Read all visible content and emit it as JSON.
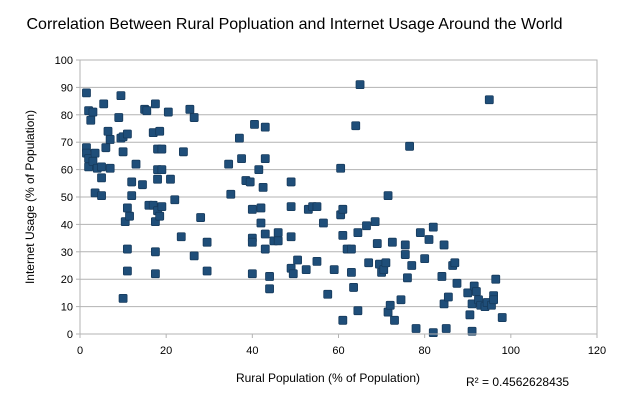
{
  "chart_data": {
    "type": "scatter",
    "title": "Correlation Between Rural Popluation and Internet Usage Around the World",
    "xlabel": "Rural Population (% of Population)",
    "ylabel": "Internet Usage (% of Population)",
    "xlim": [
      0,
      120
    ],
    "ylim": [
      0,
      100
    ],
    "xticks": [
      0,
      20,
      40,
      60,
      80,
      100,
      120
    ],
    "yticks": [
      0,
      10,
      20,
      30,
      40,
      50,
      60,
      70,
      80,
      90,
      100
    ],
    "grid": "horizontal",
    "annotation": "R² = 0.4562628435",
    "marker_color": "#1f4e79",
    "points": [
      [
        1.5,
        88
      ],
      [
        1.5,
        68
      ],
      [
        2,
        81.5
      ],
      [
        2.5,
        78
      ],
      [
        3,
        81
      ],
      [
        1.5,
        66
      ],
      [
        2,
        64
      ],
      [
        2,
        61
      ],
      [
        3,
        63
      ],
      [
        3.5,
        66
      ],
      [
        4,
        60.5
      ],
      [
        3.5,
        51.5
      ],
      [
        5,
        61
      ],
      [
        5,
        57
      ],
      [
        5,
        50.5
      ],
      [
        5.5,
        84
      ],
      [
        6,
        68
      ],
      [
        6.5,
        74
      ],
      [
        7,
        71
      ],
      [
        7,
        60.5
      ],
      [
        9,
        79
      ],
      [
        9.5,
        87
      ],
      [
        9.5,
        71.5
      ],
      [
        10,
        66.5
      ],
      [
        10,
        72
      ],
      [
        11,
        73
      ],
      [
        10,
        13
      ],
      [
        10.5,
        41
      ],
      [
        11,
        46
      ],
      [
        11.5,
        43
      ],
      [
        11,
        31
      ],
      [
        11,
        23
      ],
      [
        12,
        55.5
      ],
      [
        12,
        50.5
      ],
      [
        13,
        62
      ],
      [
        14.5,
        54.5
      ],
      [
        15,
        82
      ],
      [
        15.5,
        81.5
      ],
      [
        16,
        47
      ],
      [
        17,
        73.5
      ],
      [
        17.5,
        84
      ],
      [
        18,
        67.5
      ],
      [
        18,
        60
      ],
      [
        18.5,
        74
      ],
      [
        18,
        56.5
      ],
      [
        17,
        47
      ],
      [
        17.5,
        41
      ],
      [
        18,
        45
      ],
      [
        18.5,
        43
      ],
      [
        19,
        46.5
      ],
      [
        17.5,
        30
      ],
      [
        17.5,
        22
      ],
      [
        19,
        60
      ],
      [
        19,
        67.5
      ],
      [
        20.5,
        81
      ],
      [
        21,
        56.5
      ],
      [
        22,
        49
      ],
      [
        24,
        66.5
      ],
      [
        23.5,
        35.5
      ],
      [
        25.5,
        82
      ],
      [
        26.5,
        79
      ],
      [
        26.5,
        28.5
      ],
      [
        28,
        42.5
      ],
      [
        29.5,
        33.5
      ],
      [
        29.5,
        23
      ],
      [
        34.5,
        62
      ],
      [
        35,
        51
      ],
      [
        37,
        71.5
      ],
      [
        37.5,
        64
      ],
      [
        38.5,
        56
      ],
      [
        39.5,
        55.5
      ],
      [
        40.5,
        76.5
      ],
      [
        40,
        45.5
      ],
      [
        40,
        35
      ],
      [
        40,
        33.5
      ],
      [
        40,
        22
      ],
      [
        41.5,
        60
      ],
      [
        42,
        46
      ],
      [
        42.5,
        53.5
      ],
      [
        42,
        40.5
      ],
      [
        43,
        75.5
      ],
      [
        43,
        64
      ],
      [
        43,
        36.5
      ],
      [
        43,
        31
      ],
      [
        44,
        21
      ],
      [
        44,
        16.5
      ],
      [
        45,
        34
      ],
      [
        46,
        37
      ],
      [
        46,
        34
      ],
      [
        49,
        55.5
      ],
      [
        49,
        46.5
      ],
      [
        49,
        35.5
      ],
      [
        49,
        24
      ],
      [
        49.5,
        22
      ],
      [
        50.5,
        27
      ],
      [
        52.5,
        23.5
      ],
      [
        53,
        45.5
      ],
      [
        54,
        46.5
      ],
      [
        55,
        46.5
      ],
      [
        55,
        26.5
      ],
      [
        56.5,
        40.5
      ],
      [
        57.5,
        14.5
      ],
      [
        59,
        23.5
      ],
      [
        60.5,
        60.5
      ],
      [
        60.5,
        43.5
      ],
      [
        61,
        45.5
      ],
      [
        61,
        36
      ],
      [
        61,
        5
      ],
      [
        62,
        31
      ],
      [
        63,
        31
      ],
      [
        63,
        22.5
      ],
      [
        63.5,
        17
      ],
      [
        64,
        76
      ],
      [
        64.5,
        8.5
      ],
      [
        64.5,
        37
      ],
      [
        65,
        91
      ],
      [
        66.5,
        39.5
      ],
      [
        67,
        26
      ],
      [
        68.5,
        41
      ],
      [
        69,
        33
      ],
      [
        69.5,
        25.5
      ],
      [
        70,
        22.5
      ],
      [
        70.5,
        23.5
      ],
      [
        71,
        26
      ],
      [
        71.5,
        50.5
      ],
      [
        71.5,
        8
      ],
      [
        72,
        10.5
      ],
      [
        72.5,
        33.5
      ],
      [
        73,
        5
      ],
      [
        74.5,
        12.5
      ],
      [
        75.5,
        32.5
      ],
      [
        75.5,
        29
      ],
      [
        76,
        20.5
      ],
      [
        76.5,
        68.5
      ],
      [
        77,
        25
      ],
      [
        78,
        2
      ],
      [
        79,
        37
      ],
      [
        80,
        27.5
      ],
      [
        81,
        34.5
      ],
      [
        82,
        0.5
      ],
      [
        82,
        39
      ],
      [
        84,
        21
      ],
      [
        84.5,
        32.5
      ],
      [
        84.5,
        11
      ],
      [
        85,
        2
      ],
      [
        85.5,
        13.5
      ],
      [
        86.5,
        25
      ],
      [
        87,
        26
      ],
      [
        87.5,
        18.5
      ],
      [
        90,
        15
      ],
      [
        90.5,
        7
      ],
      [
        91,
        11
      ],
      [
        91,
        1
      ],
      [
        91.5,
        17.5
      ],
      [
        92,
        15.5
      ],
      [
        92.5,
        12.5
      ],
      [
        93,
        10.5
      ],
      [
        94,
        10
      ],
      [
        94.5,
        11.5
      ],
      [
        95,
        85.5
      ],
      [
        95.5,
        10.5
      ],
      [
        96,
        14
      ],
      [
        96,
        12.5
      ],
      [
        96.5,
        20
      ],
      [
        98,
        6
      ]
    ]
  }
}
